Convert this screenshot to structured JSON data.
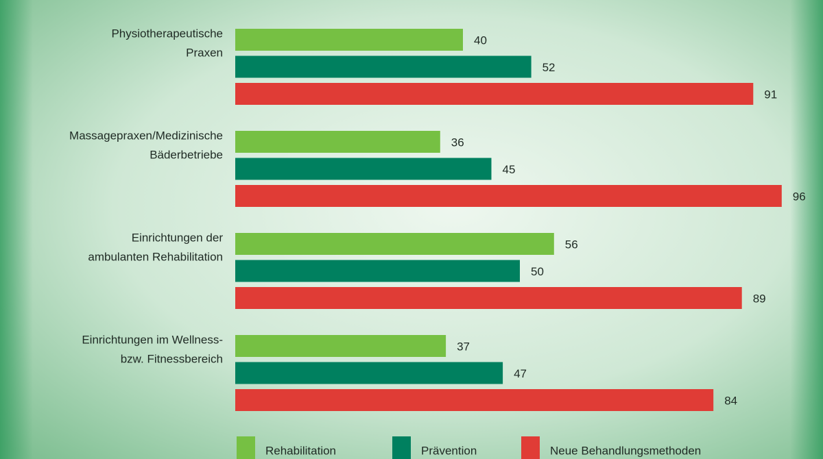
{
  "chart_data": {
    "type": "bar",
    "orientation": "horizontal",
    "categories": [
      [
        "Physiotherapeutische",
        "Praxen"
      ],
      [
        "Massagepraxen/Medizinische",
        "Bäderbetriebe"
      ],
      [
        "Einrichtungen der",
        "ambulanten Rehabilitation"
      ],
      [
        "Einrichtungen im Wellness-",
        "bzw. Fitnessbereich"
      ]
    ],
    "series": [
      {
        "name": "Rehabilitation",
        "color": "#76c043",
        "values": [
          40,
          36,
          56,
          37
        ]
      },
      {
        "name": "Prävention",
        "color": "#00805f",
        "values": [
          52,
          45,
          50,
          47
        ]
      },
      {
        "name": "Neue Behandlungsmethoden",
        "color": "#e03c36",
        "values": [
          91,
          96,
          89,
          84
        ]
      }
    ]
  }
}
